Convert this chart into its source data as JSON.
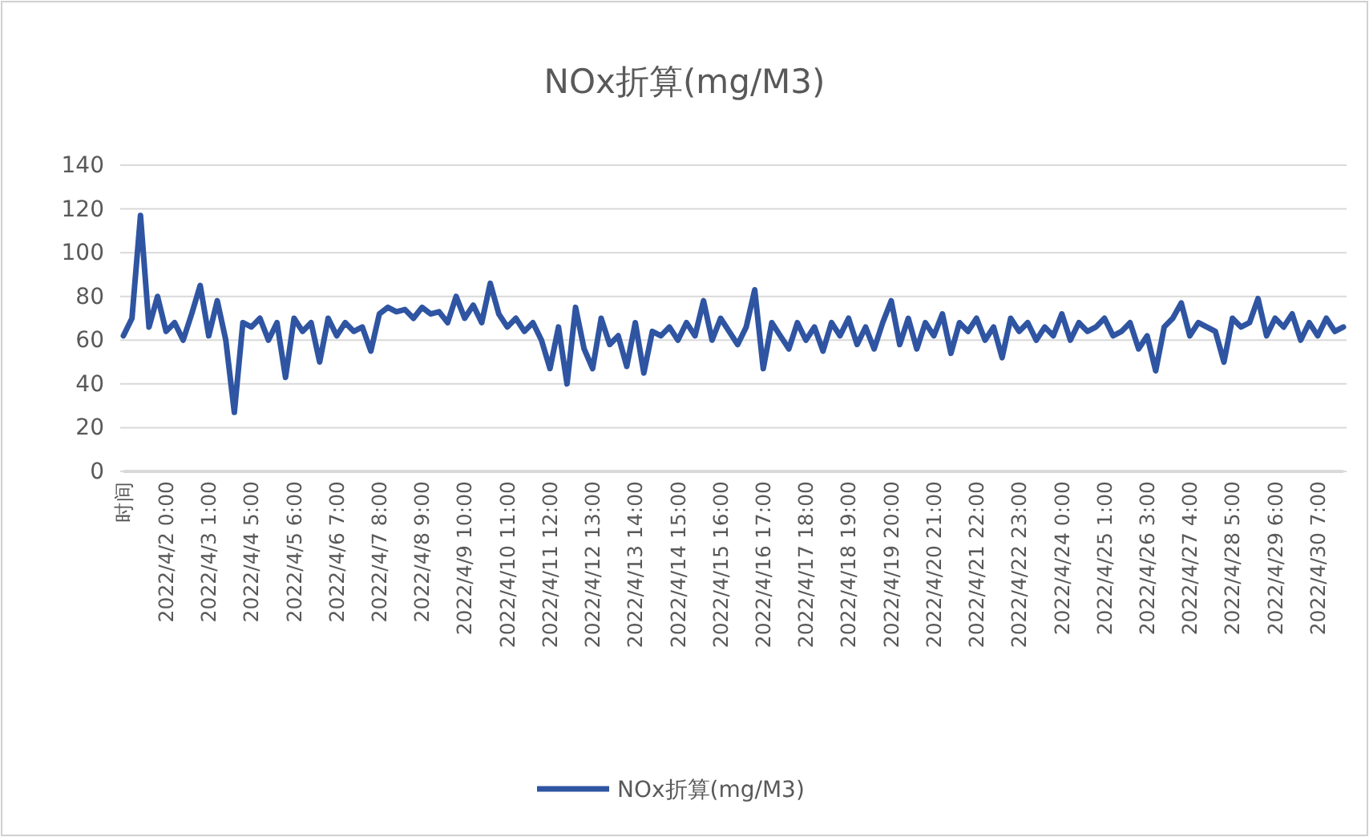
{
  "chart_data": {
    "type": "line",
    "title": "NOx折算(mg/M3)",
    "categories": [
      "时间",
      null,
      null,
      null,
      null,
      "2022/4/2 0:00",
      null,
      null,
      null,
      null,
      "2022/4/3 1:00",
      null,
      null,
      null,
      null,
      "2022/4/4 5:00",
      null,
      null,
      null,
      null,
      "2022/4/5 6:00",
      null,
      null,
      null,
      null,
      "2022/4/6 7:00",
      null,
      null,
      null,
      null,
      "2022/4/7 8:00",
      null,
      null,
      null,
      null,
      "2022/4/8 9:00",
      null,
      null,
      null,
      null,
      "2022/4/9 10:00",
      null,
      null,
      null,
      null,
      "2022/4/10 11:00",
      null,
      null,
      null,
      null,
      "2022/4/11 12:00",
      null,
      null,
      null,
      null,
      "2022/4/12 13:00",
      null,
      null,
      null,
      null,
      "2022/4/13 14:00",
      null,
      null,
      null,
      null,
      "2022/4/14 15:00",
      null,
      null,
      null,
      null,
      "2022/4/15 16:00",
      null,
      null,
      null,
      null,
      "2022/4/16 17:00",
      null,
      null,
      null,
      null,
      "2022/4/17 18:00",
      null,
      null,
      null,
      null,
      "2022/4/18 19:00",
      null,
      null,
      null,
      null,
      "2022/4/19 20:00",
      null,
      null,
      null,
      null,
      "2022/4/20 21:00",
      null,
      null,
      null,
      null,
      "2022/4/21 22:00",
      null,
      null,
      null,
      null,
      "2022/4/22 23:00",
      null,
      null,
      null,
      null,
      "2022/4/24 0:00",
      null,
      null,
      null,
      null,
      "2022/4/25 1:00",
      null,
      null,
      null,
      null,
      "2022/4/26 3:00",
      null,
      null,
      null,
      null,
      "2022/4/27 4:00",
      null,
      null,
      null,
      null,
      "2022/4/28 5:00",
      null,
      null,
      null,
      null,
      "2022/4/29 6:00",
      null,
      null,
      null,
      null,
      "2022/4/30 7:00",
      null,
      null,
      null
    ],
    "series": [
      {
        "name": "NOx折算(mg/M3)",
        "color": "#2f55a2",
        "values": [
          62,
          70,
          117,
          66,
          80,
          64,
          68,
          60,
          72,
          85,
          62,
          78,
          60,
          27,
          68,
          66,
          70,
          60,
          68,
          43,
          70,
          64,
          68,
          50,
          70,
          62,
          68,
          64,
          66,
          55,
          72,
          75,
          73,
          74,
          70,
          75,
          72,
          73,
          68,
          80,
          70,
          76,
          68,
          86,
          72,
          66,
          70,
          64,
          68,
          60,
          47,
          66,
          40,
          75,
          56,
          47,
          70,
          58,
          62,
          48,
          68,
          45,
          64,
          62,
          66,
          60,
          68,
          62,
          78,
          60,
          70,
          64,
          58,
          66,
          83,
          47,
          68,
          62,
          56,
          68,
          60,
          66,
          55,
          68,
          62,
          70,
          58,
          66,
          56,
          68,
          78,
          58,
          70,
          56,
          68,
          62,
          72,
          54,
          68,
          64,
          70,
          60,
          66,
          52,
          70,
          64,
          68,
          60,
          66,
          62,
          72,
          60,
          68,
          64,
          66,
          70,
          62,
          64,
          68,
          56,
          62,
          46,
          66,
          70,
          77,
          62,
          68,
          66,
          64,
          50,
          70,
          66,
          68,
          79,
          62,
          70,
          66,
          72,
          60,
          68,
          62,
          70,
          64,
          66
        ]
      }
    ],
    "ylim": [
      0,
      140
    ],
    "yticks": [
      0,
      20,
      40,
      60,
      80,
      100,
      120,
      140
    ],
    "grid": "y",
    "legend": "bottom"
  }
}
